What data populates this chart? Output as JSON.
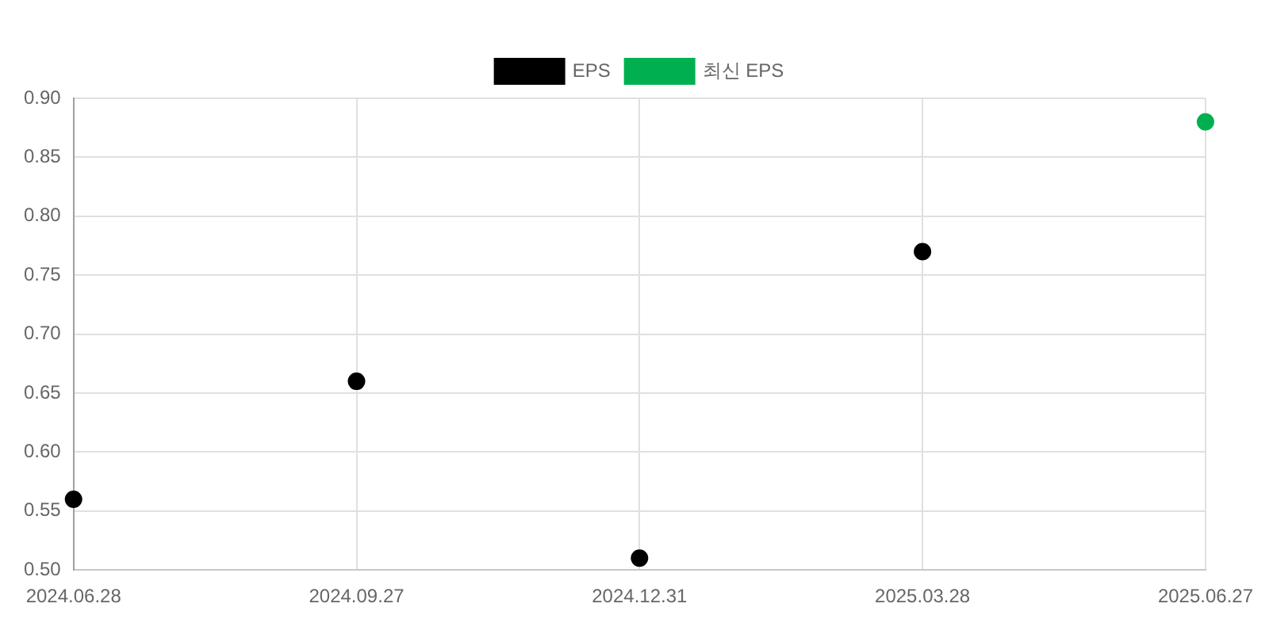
{
  "chart_data": {
    "type": "scatter",
    "categories": [
      "2024.06.28",
      "2024.09.27",
      "2024.12.31",
      "2025.03.28",
      "2025.06.27"
    ],
    "series": [
      {
        "name": "EPS",
        "color": "#000000",
        "values": [
          0.56,
          0.66,
          0.51,
          0.77,
          null
        ]
      },
      {
        "name": "최신 EPS",
        "color": "#00b050",
        "values": [
          null,
          null,
          null,
          null,
          0.88
        ]
      }
    ],
    "ylim": [
      0.5,
      0.9
    ],
    "yticks": [
      {
        "value": 0.5,
        "label": "0.50"
      },
      0.55,
      {
        "value": 0.6,
        "label": "0.60"
      },
      0.65,
      {
        "value": 0.7,
        "label": "0.70"
      },
      0.75,
      {
        "value": 0.8,
        "label": "0.80"
      },
      0.85,
      {
        "value": 0.9,
        "label": "0.90"
      }
    ],
    "grid": true,
    "legend": "top",
    "marker": "circle"
  }
}
